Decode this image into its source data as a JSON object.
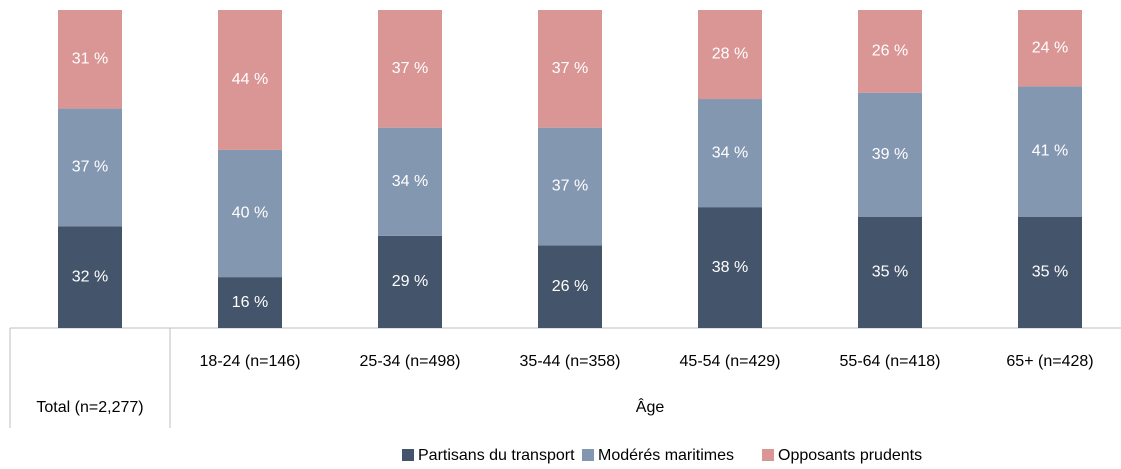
{
  "chart_data": {
    "type": "stacked_bar",
    "categories": [
      "Total (n=2,277)",
      "18-24 (n=146)",
      "25-34 (n=498)",
      "35-44 (n=358)",
      "45-54 (n=429)",
      "55-64 (n=418)",
      "65+ (n=428)"
    ],
    "group_label": "Âge",
    "ylim": [
      0,
      100
    ],
    "series": [
      {
        "name": "Partisans du transport",
        "color": "#44546a",
        "values": [
          32,
          16,
          29,
          26,
          38,
          35,
          35
        ],
        "value_labels": [
          "32 %",
          "16 %",
          "29 %",
          "26 %",
          "38 %",
          "35 %",
          "35 %"
        ]
      },
      {
        "name": "Modérés maritimes",
        "color": "#8497b0",
        "values": [
          37,
          40,
          34,
          37,
          34,
          39,
          41
        ],
        "value_labels": [
          "37 %",
          "40 %",
          "34 %",
          "37 %",
          "34 %",
          "39 %",
          "41 %"
        ]
      },
      {
        "name": "Opposants prudents",
        "color": "#da9694",
        "values": [
          31,
          44,
          37,
          37,
          28,
          26,
          24
        ],
        "value_labels": [
          "31 %",
          "44 %",
          "37 %",
          "37 %",
          "28 %",
          "26 %",
          "24 %"
        ]
      }
    ],
    "legend": "bottom"
  }
}
